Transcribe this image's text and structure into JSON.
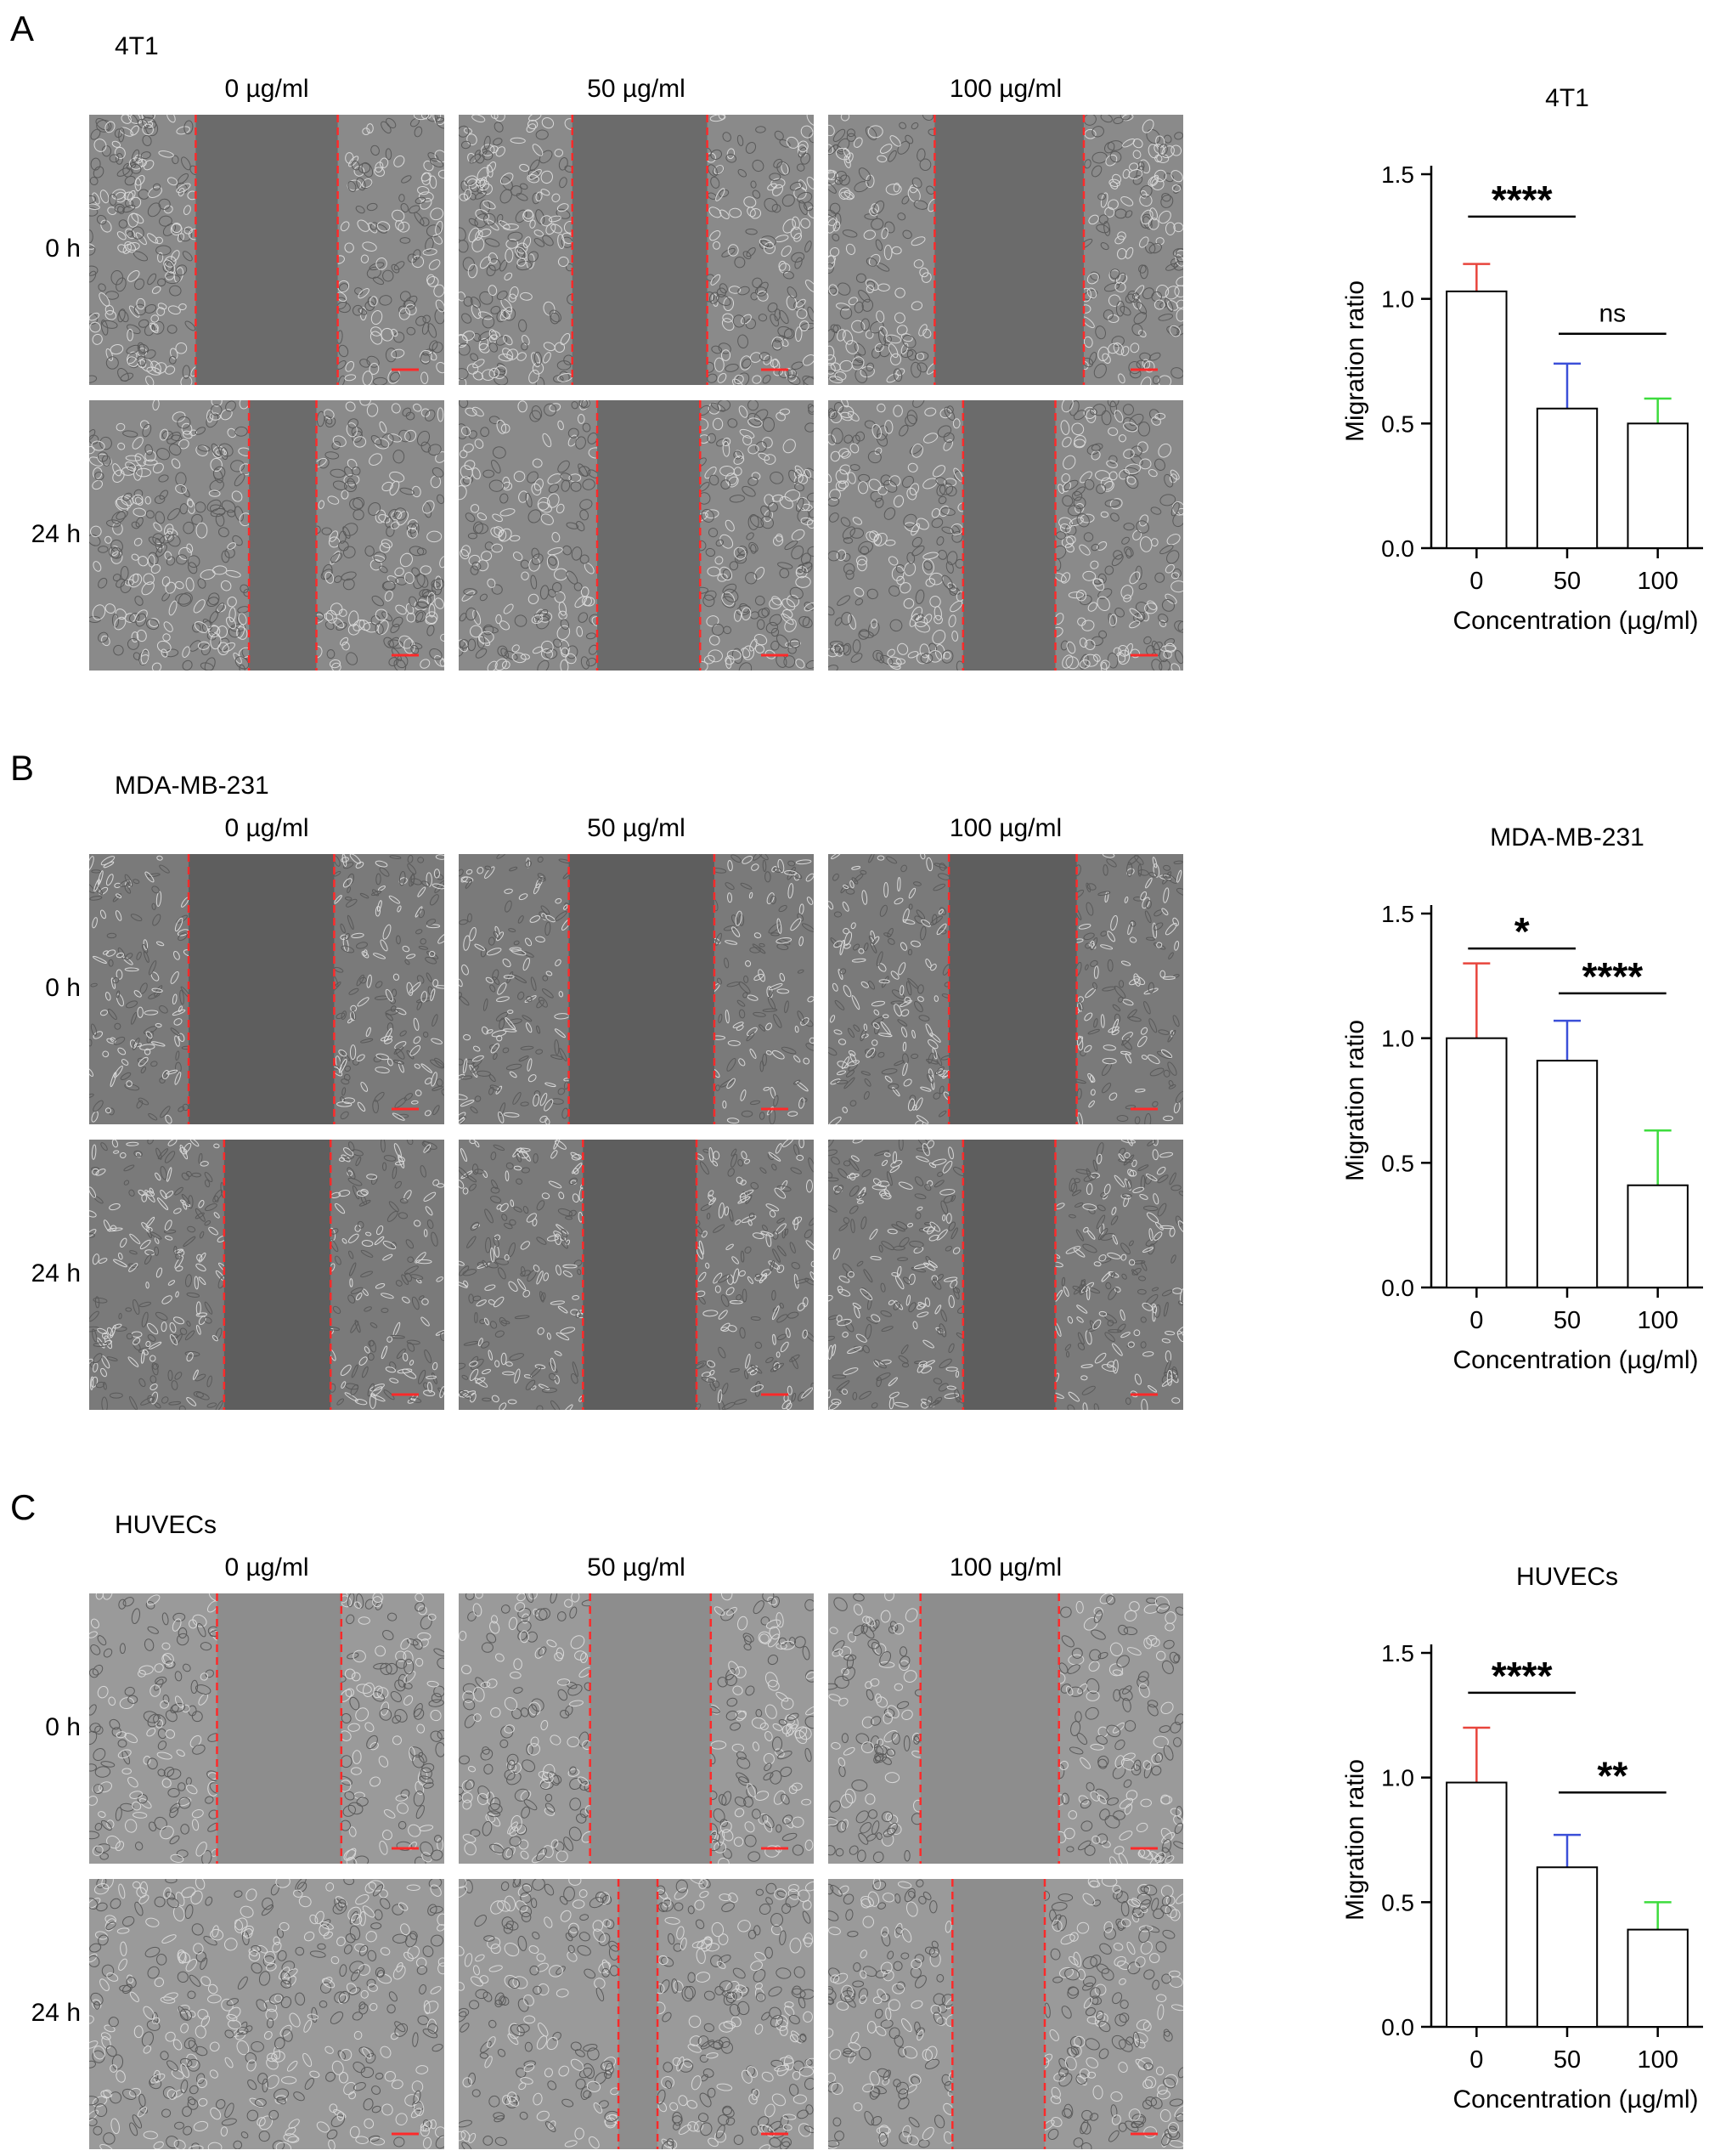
{
  "panels": [
    {
      "letter": "A",
      "cell_line": "4T1",
      "concentrations": [
        "0 µg/ml",
        "50 µg/ml",
        "100 µg/ml"
      ],
      "times": [
        "0 h",
        "24 h"
      ],
      "style": "dense",
      "colors": {
        "cells": "#8a8a8a",
        "gap": "#6b6b6b"
      }
    },
    {
      "letter": "B",
      "cell_line": "MDA-MB-231",
      "concentrations": [
        "0 µg/ml",
        "50 µg/ml",
        "100 µg/ml"
      ],
      "times": [
        "0 h",
        "24 h"
      ],
      "style": "elongated",
      "colors": {
        "cells": "#7a7a7a",
        "gap": "#5e5e5e"
      }
    },
    {
      "letter": "C",
      "cell_line": "HUVECs",
      "concentrations": [
        "0 µg/ml",
        "50 µg/ml",
        "100 µg/ml"
      ],
      "times": [
        "0 h",
        "24 h"
      ],
      "style": "cobble",
      "colors": {
        "cells": "#9a9a9a",
        "gap": "#8d8d8d"
      }
    }
  ],
  "chart_data": [
    {
      "type": "bar",
      "title": "4T1",
      "categories": [
        "0",
        "50",
        "100"
      ],
      "values": [
        1.03,
        0.56,
        0.5
      ],
      "errors": [
        0.11,
        0.18,
        0.1
      ],
      "error_colors": [
        "#e8453c",
        "#3b4fd8",
        "#3ddc3d"
      ],
      "xlabel": "Concentration (µg/ml)",
      "ylabel": "Migration ratio",
      "ylim": [
        0,
        1.5
      ],
      "yticks": [
        "0.0",
        "0.5",
        "1.0",
        "1.5"
      ],
      "significance": [
        {
          "from": 0,
          "to": 1,
          "label": "****",
          "y": 1.33
        },
        {
          "from": 1,
          "to": 2,
          "label": "ns",
          "y": 0.86
        }
      ]
    },
    {
      "type": "bar",
      "title": "MDA-MB-231",
      "categories": [
        "0",
        "50",
        "100"
      ],
      "values": [
        1.0,
        0.91,
        0.41
      ],
      "errors": [
        0.3,
        0.16,
        0.22
      ],
      "error_colors": [
        "#e8453c",
        "#3b4fd8",
        "#3ddc3d"
      ],
      "xlabel": "Concentration (µg/ml)",
      "ylabel": "Migration ratio",
      "ylim": [
        0,
        1.5
      ],
      "yticks": [
        "0.0",
        "0.5",
        "1.0",
        "1.5"
      ],
      "significance": [
        {
          "from": 0,
          "to": 1,
          "label": "*",
          "y": 1.36
        },
        {
          "from": 1,
          "to": 2,
          "label": "****",
          "y": 1.18
        }
      ]
    },
    {
      "type": "bar",
      "title": "HUVECs",
      "categories": [
        "0",
        "50",
        "100"
      ],
      "values": [
        0.98,
        0.64,
        0.39
      ],
      "errors": [
        0.22,
        0.13,
        0.11
      ],
      "error_colors": [
        "#e8453c",
        "#3b4fd8",
        "#3ddc3d"
      ],
      "xlabel": "Concentration (µg/ml)",
      "ylabel": "Migration ratio",
      "ylim": [
        0,
        1.5
      ],
      "yticks": [
        "0.0",
        "0.5",
        "1.0",
        "1.5"
      ],
      "significance": [
        {
          "from": 0,
          "to": 1,
          "label": "****",
          "y": 1.34
        },
        {
          "from": 1,
          "to": 2,
          "label": "**",
          "y": 0.94
        }
      ]
    }
  ]
}
